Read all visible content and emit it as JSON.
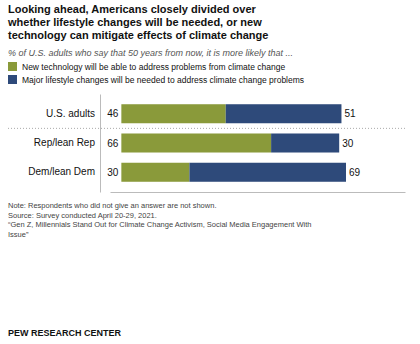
{
  "chart_data": {
    "type": "bar",
    "orientation": "horizontal",
    "stacked": true,
    "data_labels": true,
    "tick_labels": "y",
    "legend": "top",
    "title": "Looking ahead, Americans closely divided over\nwhether lifestyle changes will be needed, or new\ntechnology can mitigate effects of climate change",
    "subtitle": "% of U.S. adults who say that 50 years from now, it is more likely that ...",
    "categories": [
      "U.S. adults",
      "Rep/lean Rep",
      "Dem/lean Dem"
    ],
    "series": [
      {
        "name": "New technology will be able to address problems from climate change",
        "color": "#8a9a3a",
        "values": [
          46,
          66,
          30
        ]
      },
      {
        "name": "Major lifestyle changes will be needed to address climate change problems",
        "color": "#2e4a7a",
        "values": [
          51,
          30,
          69
        ]
      }
    ],
    "xlim": [
      -5,
      125
    ],
    "annotations": [
      "Note: Respondents who did not give an answer are not shown.\nSource: Survey conducted April 20-29, 2021.\n“Gen Z, Millennials Stand Out for Climate Change Activism, Social Media Engagement With\nIssue”",
      "PEW RESEARCH CENTER"
    ]
  }
}
